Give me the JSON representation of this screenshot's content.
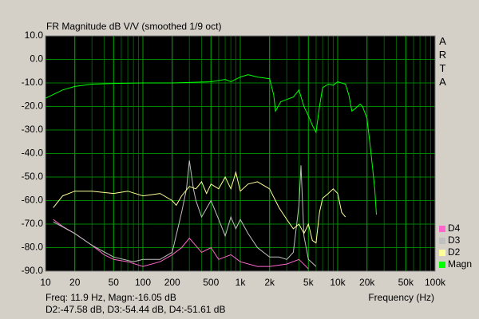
{
  "chart_data": {
    "type": "line",
    "title": "FR Magnitude dB V/V (smoothed 1/9 oct)",
    "watermark": "ARTA",
    "xlabel": "Frequency (Hz)",
    "readout": [
      "Freq: 11.9 Hz, Magn:-16.05 dB",
      "D2:-47.58 dB, D3:-54.44 dB, D4:-51.61 dB"
    ],
    "xscale": "log",
    "xlim": [
      10,
      100000
    ],
    "ylim": [
      -90,
      10
    ],
    "xticks": [
      10,
      20,
      50,
      100,
      200,
      500,
      {
        "value": 1000,
        "label": "1k"
      },
      {
        "value": 2000,
        "label": "2k"
      },
      {
        "value": 5000,
        "label": "5k"
      },
      {
        "value": 10000,
        "label": "10k"
      },
      {
        "value": 20000,
        "label": "20k"
      },
      {
        "value": 50000,
        "label": "50k"
      },
      {
        "value": 100000,
        "label": "100k"
      }
    ],
    "yticks": [
      {
        "value": 10,
        "label": "10.0"
      },
      {
        "value": 0,
        "label": "0.0"
      },
      {
        "value": -10,
        "label": "-10.0"
      },
      {
        "value": -20,
        "label": "-20.0"
      },
      {
        "value": -30,
        "label": "-30.0"
      },
      {
        "value": -40,
        "label": "-40.0"
      },
      {
        "value": -50,
        "label": "-50.0"
      },
      {
        "value": -60,
        "label": "-60.0"
      },
      {
        "value": -70,
        "label": "-70.0"
      },
      {
        "value": -80,
        "label": "-80.0"
      },
      {
        "value": -90,
        "label": "-90.0"
      }
    ],
    "grid": true,
    "legend": "lower right",
    "series": [
      {
        "name": "Magn",
        "color": "#00ff00",
        "x": [
          10,
          15,
          20,
          30,
          50,
          100,
          200,
          300,
          500,
          700,
          800,
          1000,
          1200,
          1500,
          2000,
          2200,
          2300,
          2600,
          3000,
          3500,
          4000,
          4500,
          5000,
          5500,
          6000,
          6500,
          7000,
          8000,
          9000,
          10000,
          12000,
          13000,
          14000,
          15000,
          17000,
          18000,
          20000,
          22000,
          24000,
          25000
        ],
        "values": [
          -16.5,
          -13,
          -11.5,
          -10.5,
          -10.2,
          -10,
          -10,
          -9.8,
          -9.5,
          -8.5,
          -9.5,
          -7.5,
          -6.5,
          -7.5,
          -8.2,
          -15,
          -22,
          -18,
          -17,
          -16,
          -13,
          -20,
          -24,
          -28,
          -31,
          -20,
          -12,
          -10.5,
          -11,
          -9.5,
          -10.5,
          -15,
          -22,
          -21,
          -19,
          -20,
          -25,
          -40,
          -55,
          -66
        ]
      },
      {
        "name": "D2",
        "color": "#ffff99",
        "x": [
          12,
          15,
          20,
          30,
          50,
          70,
          100,
          150,
          200,
          220,
          250,
          300,
          350,
          400,
          450,
          500,
          600,
          700,
          800,
          900,
          1000,
          1200,
          1500,
          2000,
          2500,
          3000,
          3500,
          4000,
          4500,
          5000,
          5500,
          6000,
          6500,
          7000,
          8000,
          9000,
          10000,
          11000,
          12000
        ],
        "values": [
          -63,
          -58,
          -56,
          -56,
          -57,
          -56,
          -58,
          -57,
          -60,
          -62,
          -58,
          -54,
          -55,
          -52,
          -57,
          -53,
          -55,
          -50,
          -55,
          -48,
          -56,
          -53,
          -52,
          -55,
          -63,
          -68,
          -72,
          -70,
          -74,
          -70,
          -77,
          -78,
          -65,
          -59,
          -57,
          -55,
          -57,
          -65,
          -67
        ]
      },
      {
        "name": "D3",
        "color": "#c0c0c0",
        "x": [
          12,
          20,
          30,
          50,
          80,
          100,
          150,
          200,
          250,
          280,
          300,
          330,
          350,
          400,
          500,
          600,
          700,
          800,
          900,
          1000,
          1200,
          1500,
          2000,
          2500,
          3000,
          3500,
          4000,
          4200,
          4500,
          5000,
          6000
        ],
        "values": [
          -69,
          -74,
          -79,
          -84,
          -86,
          -85,
          -85,
          -82,
          -65,
          -55,
          -43,
          -55,
          -60,
          -67,
          -60,
          -68,
          -75,
          -67,
          -72,
          -68,
          -74,
          -80,
          -84,
          -84,
          -85,
          -82,
          -62,
          -45,
          -75,
          -85,
          -88
        ]
      },
      {
        "name": "D4",
        "color": "#ff66cc",
        "x": [
          12,
          15,
          20,
          30,
          40,
          50,
          70,
          100,
          150,
          200,
          250,
          300,
          400,
          500,
          600,
          800,
          1000,
          1500,
          2000,
          3000,
          4000,
          5000
        ],
        "values": [
          -68,
          -71,
          -74,
          -79,
          -83,
          -85,
          -86,
          -88,
          -86,
          -83,
          -80,
          -76,
          -82,
          -80,
          -85,
          -83,
          -86,
          -88,
          -88,
          -87,
          -85,
          -89
        ]
      }
    ]
  }
}
